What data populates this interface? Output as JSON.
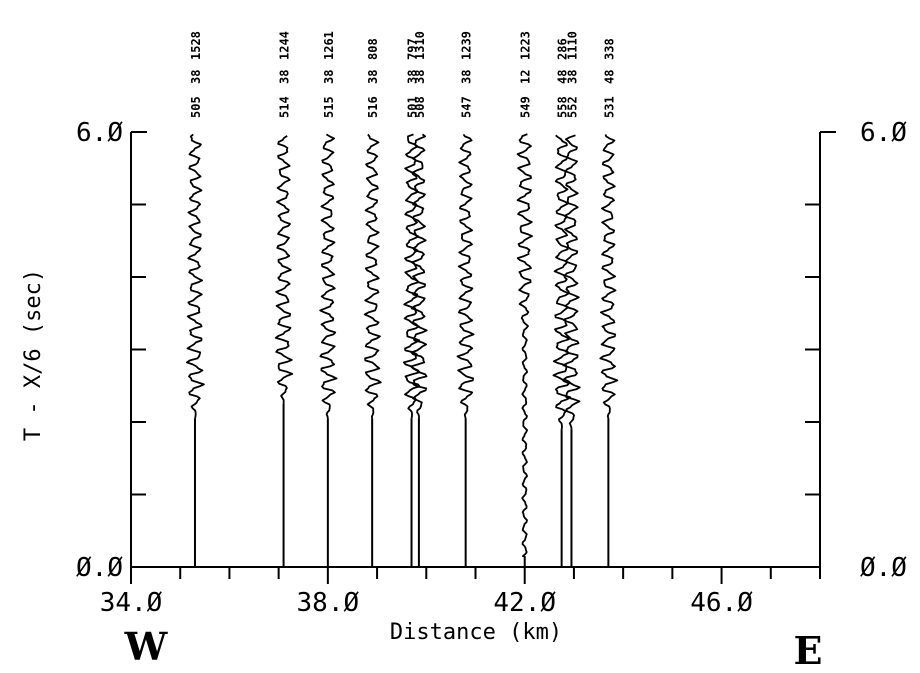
{
  "chart_data": {
    "type": "seismic record section",
    "xlabel": "Distance (km)",
    "ylabel": "T - X/6 (sec)",
    "xlim": [
      34.0,
      48.0
    ],
    "ylim": [
      0.0,
      6.0
    ],
    "x_tick_labels": [
      "34.Ø",
      "38.Ø",
      "42.Ø",
      "46.Ø"
    ],
    "x_major_ticks": [
      34,
      38,
      42,
      46
    ],
    "x_minor_ticks": [
      35,
      36,
      37,
      39,
      40,
      41,
      43,
      44,
      45,
      47,
      48
    ],
    "y_tick_labels": [
      "Ø.Ø",
      "6.Ø"
    ],
    "y_ticks": [
      1,
      2,
      3,
      4,
      5
    ],
    "direction_left": "W",
    "direction_right": "E",
    "traces": [
      {
        "distance": 35.3,
        "onset": 2.05,
        "label1": "505",
        "label2": "38",
        "label3": "1528"
      },
      {
        "distance": 37.1,
        "onset": 2.25,
        "label1": "514",
        "label2": "38",
        "label3": "1244"
      },
      {
        "distance": 38.0,
        "onset": 2.05,
        "label1": "515",
        "label2": "38",
        "label3": "1261"
      },
      {
        "distance": 38.9,
        "onset": 2.05,
        "label1": "516",
        "label2": "38",
        "label3": "808"
      },
      {
        "distance": 39.7,
        "onset": 2.05,
        "label1": "501",
        "label2": "38",
        "label3": "797"
      },
      {
        "distance": 39.85,
        "onset": 2.05,
        "label1": "508",
        "label2": "38",
        "label3": "1310"
      },
      {
        "distance": 40.8,
        "onset": 2.05,
        "label1": "547",
        "label2": "38",
        "label3": "1239"
      },
      {
        "distance": 42.0,
        "onset": 0.15,
        "label1": "549",
        "label2": "12",
        "label3": "1223"
      },
      {
        "distance": 42.75,
        "onset": 1.9,
        "label1": "558",
        "label2": "48",
        "label3": "286"
      },
      {
        "distance": 42.95,
        "onset": 1.9,
        "label1": "552",
        "label2": "38",
        "label3": "1110"
      },
      {
        "distance": 43.7,
        "onset": 2.05,
        "label1": "531",
        "label2": "48",
        "label3": "338"
      }
    ],
    "grid": false
  }
}
